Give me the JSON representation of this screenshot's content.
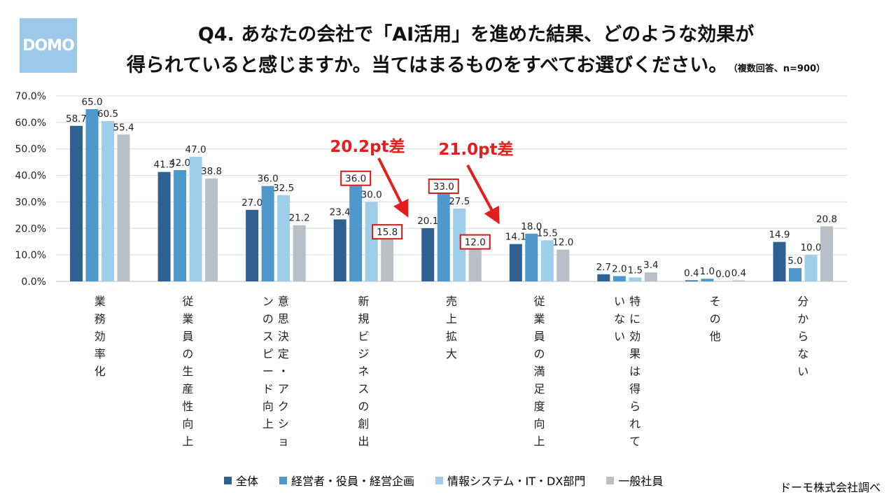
{
  "logo": {
    "text": "DOMO"
  },
  "title": {
    "line1": "Q4. あなたの会社で「AI活用」を進めた結果、どのような効果が",
    "line2": "得られていると感じますか。当てはまるものをすべてお選びください。",
    "note": "（複数回答、n=900）"
  },
  "source": "ドーモ株式会社調べ",
  "chart_data": {
    "type": "bar",
    "categories": [
      "業務効率化",
      "従業員の生産性向上",
      "意思決定・アクションのスピード向上",
      "新規ビジネスの創出",
      "売上拡大",
      "従業員の満足度向上",
      "特に効果は得られていない",
      "その他",
      "分からない"
    ],
    "category_columns": [
      [
        "業務効率化"
      ],
      [
        "従業員の生産性向上"
      ],
      [
        "意思決定・アクショ",
        "ンのスピード向上"
      ],
      [
        "新規ビジネスの創出"
      ],
      [
        "売上拡大"
      ],
      [
        "従業員の満足度向上"
      ],
      [
        "特に効果は得られて",
        "いない"
      ],
      [
        "その他"
      ],
      [
        "分からない"
      ]
    ],
    "series": [
      {
        "name": "全体",
        "color": "#2e6092",
        "values": [
          58.7,
          41.3,
          27.0,
          23.4,
          20.1,
          14.1,
          2.7,
          0.4,
          14.9
        ]
      },
      {
        "name": "経営者・役員・経営企画",
        "color": "#4e98cc",
        "values": [
          65.0,
          42.0,
          36.0,
          36.0,
          33.0,
          18.0,
          2.0,
          1.0,
          5.0
        ]
      },
      {
        "name": "情報システム・IT・DX部門",
        "color": "#9fcdec",
        "values": [
          60.5,
          47.0,
          32.5,
          30.0,
          27.5,
          15.5,
          1.5,
          0.0,
          10.0
        ]
      },
      {
        "name": "一般社員",
        "color": "#b8bfc7",
        "values": [
          55.4,
          38.8,
          21.2,
          15.8,
          12.0,
          12.0,
          3.4,
          0.4,
          20.8
        ]
      }
    ],
    "ylim": [
      0,
      70
    ],
    "yticks": [
      "0.0%",
      "10.0%",
      "20.0%",
      "30.0%",
      "40.0%",
      "50.0%",
      "60.0%",
      "70.0%"
    ],
    "grid": true,
    "legend_position": "bottom",
    "highlighted_labels": [
      {
        "category": 3,
        "series": 1
      },
      {
        "category": 3,
        "series": 3
      },
      {
        "category": 4,
        "series": 1
      },
      {
        "category": 4,
        "series": 3
      }
    ],
    "annotations": [
      {
        "text": "20.2pt差",
        "category": 3,
        "color": "#e31e1e"
      },
      {
        "text": "21.0pt差",
        "category": 4,
        "color": "#e31e1e"
      }
    ]
  }
}
